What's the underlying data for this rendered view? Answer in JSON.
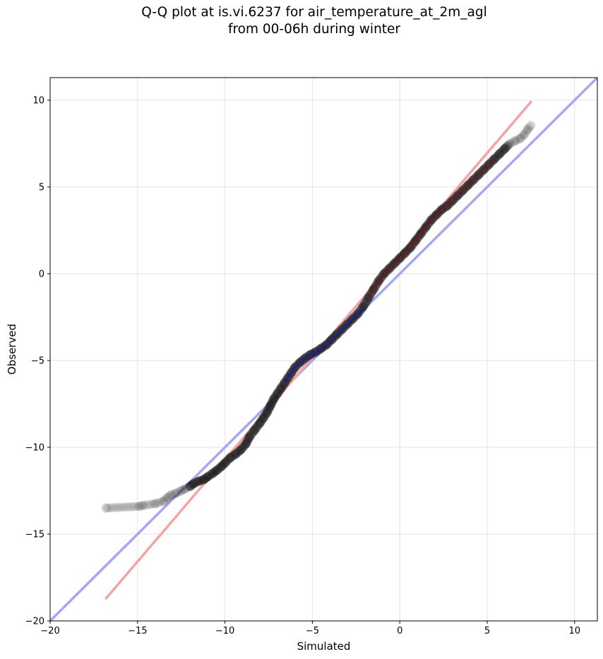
{
  "chart_data": {
    "type": "scatter",
    "title": "Q-Q plot at is.vi.6237 for air_temperature_at_2m_agl",
    "subtitle": "from 00-06h during winter",
    "xlabel": "Simulated",
    "ylabel": "Observed",
    "xlim": [
      -20,
      11.3
    ],
    "ylim": [
      -20,
      11.3
    ],
    "xticks": [
      -20,
      -15,
      -10,
      -5,
      0,
      5,
      10
    ],
    "yticks": [
      -20,
      -15,
      -10,
      -5,
      0,
      5,
      10
    ],
    "xtick_labels": [
      "−20",
      "−15",
      "−10",
      "−5",
      "0",
      "5",
      "10"
    ],
    "ytick_labels": [
      "−20",
      "−15",
      "−10",
      "−5",
      "0",
      "5",
      "10"
    ],
    "grid": true,
    "colors": {
      "points": "#1a1a1a",
      "identity_line": "#a6a6f7",
      "fit_line": "#f5a3a3",
      "central_blue": "#1f1fa8",
      "central_red": "#7a1a1a"
    },
    "series": [
      {
        "kind": "quantile_points",
        "points": [
          [
            -16.8,
            -13.5
          ],
          [
            -14.9,
            -13.4
          ],
          [
            -14.7,
            -13.35
          ],
          [
            -14.0,
            -13.25
          ],
          [
            -13.5,
            -13.1
          ],
          [
            -13.3,
            -12.9
          ],
          [
            -13.1,
            -12.75
          ],
          [
            -12.8,
            -12.65
          ],
          [
            -12.5,
            -12.5
          ],
          [
            -12.3,
            -12.4
          ],
          [
            -12.0,
            -12.25
          ],
          [
            -11.8,
            -12.1
          ],
          [
            -11.5,
            -11.95
          ],
          [
            -11.2,
            -11.85
          ],
          [
            -11.0,
            -11.7
          ],
          [
            -10.7,
            -11.5
          ],
          [
            -10.5,
            -11.35
          ],
          [
            -10.2,
            -11.1
          ],
          [
            -10.0,
            -10.9
          ],
          [
            -9.7,
            -10.6
          ],
          [
            -9.4,
            -10.4
          ],
          [
            -9.1,
            -10.15
          ],
          [
            -8.8,
            -9.8
          ],
          [
            -8.6,
            -9.4
          ],
          [
            -8.3,
            -9.0
          ],
          [
            -8.0,
            -8.6
          ],
          [
            -7.8,
            -8.3
          ],
          [
            -7.6,
            -8.0
          ],
          [
            -7.4,
            -7.6
          ],
          [
            -7.2,
            -7.2
          ],
          [
            -7.0,
            -6.9
          ],
          [
            -6.8,
            -6.6
          ],
          [
            -6.6,
            -6.3
          ],
          [
            -6.4,
            -6.0
          ],
          [
            -6.2,
            -5.7
          ],
          [
            -6.0,
            -5.4
          ],
          [
            -5.7,
            -5.1
          ],
          [
            -5.4,
            -4.85
          ],
          [
            -5.1,
            -4.65
          ],
          [
            -4.8,
            -4.5
          ],
          [
            -4.5,
            -4.3
          ],
          [
            -4.2,
            -4.1
          ],
          [
            -3.9,
            -3.8
          ],
          [
            -3.6,
            -3.5
          ],
          [
            -3.3,
            -3.2
          ],
          [
            -3.0,
            -2.9
          ],
          [
            -2.7,
            -2.6
          ],
          [
            -2.4,
            -2.3
          ],
          [
            -2.1,
            -1.9
          ],
          [
            -1.8,
            -1.4
          ],
          [
            -1.5,
            -0.9
          ],
          [
            -1.2,
            -0.4
          ],
          [
            -0.9,
            0.0
          ],
          [
            -0.6,
            0.3
          ],
          [
            -0.3,
            0.6
          ],
          [
            0.0,
            0.9
          ],
          [
            0.3,
            1.2
          ],
          [
            0.6,
            1.5
          ],
          [
            0.9,
            1.9
          ],
          [
            1.2,
            2.3
          ],
          [
            1.5,
            2.7
          ],
          [
            1.8,
            3.1
          ],
          [
            2.1,
            3.4
          ],
          [
            2.4,
            3.7
          ],
          [
            2.7,
            3.9
          ],
          [
            3.0,
            4.2
          ],
          [
            3.3,
            4.5
          ],
          [
            3.6,
            4.8
          ],
          [
            3.9,
            5.1
          ],
          [
            4.2,
            5.4
          ],
          [
            4.5,
            5.7
          ],
          [
            4.8,
            6.0
          ],
          [
            5.1,
            6.3
          ],
          [
            5.4,
            6.6
          ],
          [
            5.7,
            6.9
          ],
          [
            6.0,
            7.2
          ],
          [
            6.3,
            7.5
          ],
          [
            6.6,
            7.65
          ],
          [
            6.9,
            7.8
          ],
          [
            7.1,
            8.0
          ],
          [
            7.3,
            8.3
          ],
          [
            7.5,
            8.55
          ]
        ]
      },
      {
        "kind": "identity_line",
        "x": [
          -20,
          11.3
        ],
        "y": [
          -20,
          11.3
        ]
      },
      {
        "kind": "fit_line",
        "x": [
          -16.8,
          7.5
        ],
        "y": [
          -18.7,
          9.9
        ]
      }
    ]
  }
}
